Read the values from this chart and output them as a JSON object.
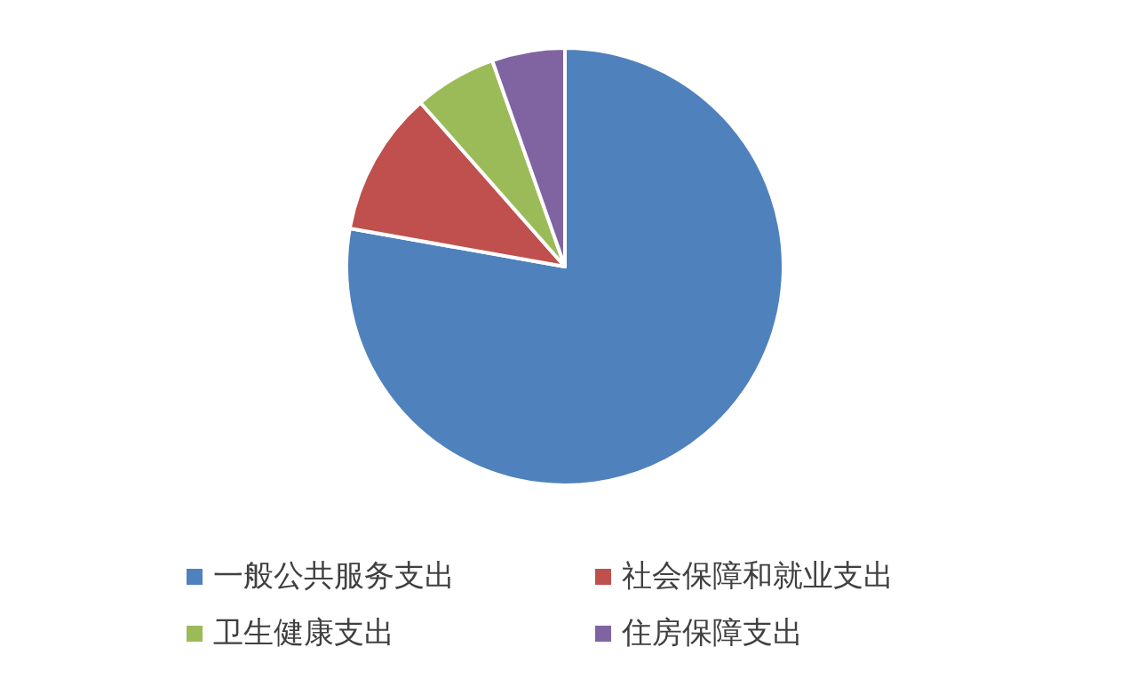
{
  "chart_data": {
    "type": "pie",
    "categories": [
      "一般公共服务支出",
      "社会保障和就业支出",
      "卫生健康支出",
      "住房保障支出"
    ],
    "values": [
      77.8,
      10.7,
      6.1,
      5.4
    ],
    "colors": [
      "#4f81bd",
      "#c0504d",
      "#9bbb59",
      "#8064a2"
    ],
    "legend": "bottom"
  }
}
